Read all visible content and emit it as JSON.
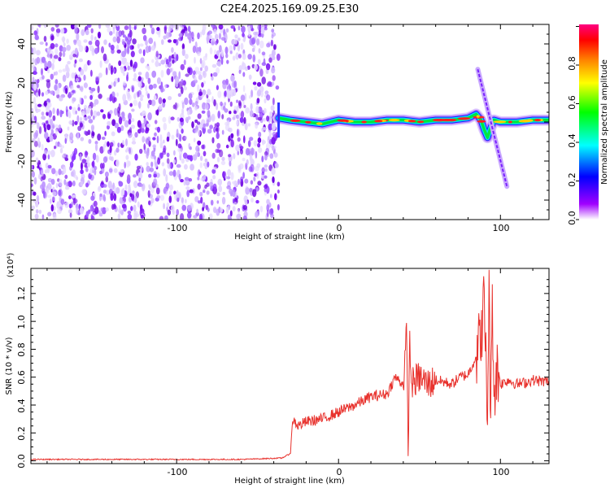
{
  "title": "C2E4.2025.169.09.25.E30",
  "chart_data": [
    {
      "type": "heatmap",
      "xlabel": "Height of straight line (km)",
      "ylabel": "Frequency (Hz)",
      "xlim": [
        -190,
        130
      ],
      "ylim": [
        -50,
        50
      ],
      "x_ticks": [
        -100,
        0,
        100
      ],
      "y_ticks": [
        -40,
        -20,
        0,
        20,
        40
      ],
      "noise_region_x": [
        -190,
        -37
      ],
      "signal_track": {
        "x": [
          -37,
          -30,
          -20,
          -10,
          0,
          10,
          20,
          30,
          40,
          50,
          60,
          70,
          80,
          85,
          88,
          90,
          92,
          94,
          96,
          100,
          110,
          120,
          130
        ],
        "y": [
          2,
          1,
          0,
          -1,
          1,
          0,
          0,
          1,
          1,
          0,
          1,
          1,
          2,
          4,
          1,
          -4,
          -8,
          -3,
          1,
          0,
          0,
          1,
          1
        ]
      },
      "sweep_line": {
        "x": [
          86,
          104
        ],
        "y": [
          27,
          -33
        ]
      },
      "colorbar": {
        "label": "Normalized spectral amplitude",
        "range": [
          0,
          1
        ],
        "ticks": [
          "0.0",
          "0.2",
          "0.4",
          "0.6",
          "0.8"
        ],
        "colors": [
          "#ffffff",
          "#a000ff",
          "#0000ff",
          "#00ffff",
          "#00ff00",
          "#ffff00",
          "#ff8000",
          "#ff0000",
          "#ff0080"
        ]
      }
    },
    {
      "type": "line",
      "xlabel": "Height of straight line (km)",
      "ylabel": "SNR (10 * v/v)",
      "y_multiplier": "(x10⁴)",
      "xlim": [
        -190,
        130
      ],
      "ylim": [
        -0.02,
        1.38
      ],
      "x_ticks": [
        -100,
        0,
        100
      ],
      "y_ticks": [
        0.0,
        0.2,
        0.4,
        0.6,
        0.8,
        1.0,
        1.2
      ],
      "series": [
        {
          "color": "#e8322d",
          "x": [
            -190,
            -150,
            -100,
            -60,
            -35,
            -30,
            -28,
            -25,
            -20,
            -10,
            0,
            10,
            20,
            30,
            35,
            40,
            42,
            43,
            44,
            45,
            50,
            55,
            60,
            70,
            75,
            80,
            85,
            88,
            90,
            92,
            93,
            94,
            95,
            96,
            98,
            100,
            105,
            110,
            115,
            120,
            125,
            130
          ],
          "y": [
            0.01,
            0.01,
            0.01,
            0.01,
            0.02,
            0.05,
            0.3,
            0.25,
            0.28,
            0.3,
            0.35,
            0.4,
            0.46,
            0.48,
            0.6,
            0.55,
            0.9,
            0.05,
            0.85,
            0.55,
            0.6,
            0.55,
            0.58,
            0.55,
            0.6,
            0.62,
            0.75,
            0.9,
            1.15,
            0.3,
            1.37,
            0.2,
            1.2,
            0.5,
            0.65,
            0.55,
            0.58,
            0.55,
            0.56,
            0.58,
            0.57,
            0.57
          ]
        }
      ]
    }
  ],
  "colorbar": {
    "label": "Normalized spectral amplitude",
    "ticks": [
      "0.0",
      "0.2",
      "0.4",
      "0.6",
      "0.8"
    ]
  },
  "top": {
    "xlabel": "Height of straight line (km)",
    "ylabel": "Frequency (Hz)",
    "x_ticks": [
      "-100",
      "0",
      "100"
    ],
    "y_ticks": [
      "-40",
      "-20",
      "0",
      "20",
      "40"
    ]
  },
  "bottom": {
    "xlabel": "Height of straight line (km)",
    "ylabel": "SNR (10 * v/v)",
    "multiplier": "(x10⁴)",
    "x_ticks": [
      "-100",
      "0",
      "100"
    ],
    "y_ticks": [
      "0.0",
      "0.2",
      "0.4",
      "0.6",
      "0.8",
      "1.0",
      "1.2"
    ]
  }
}
